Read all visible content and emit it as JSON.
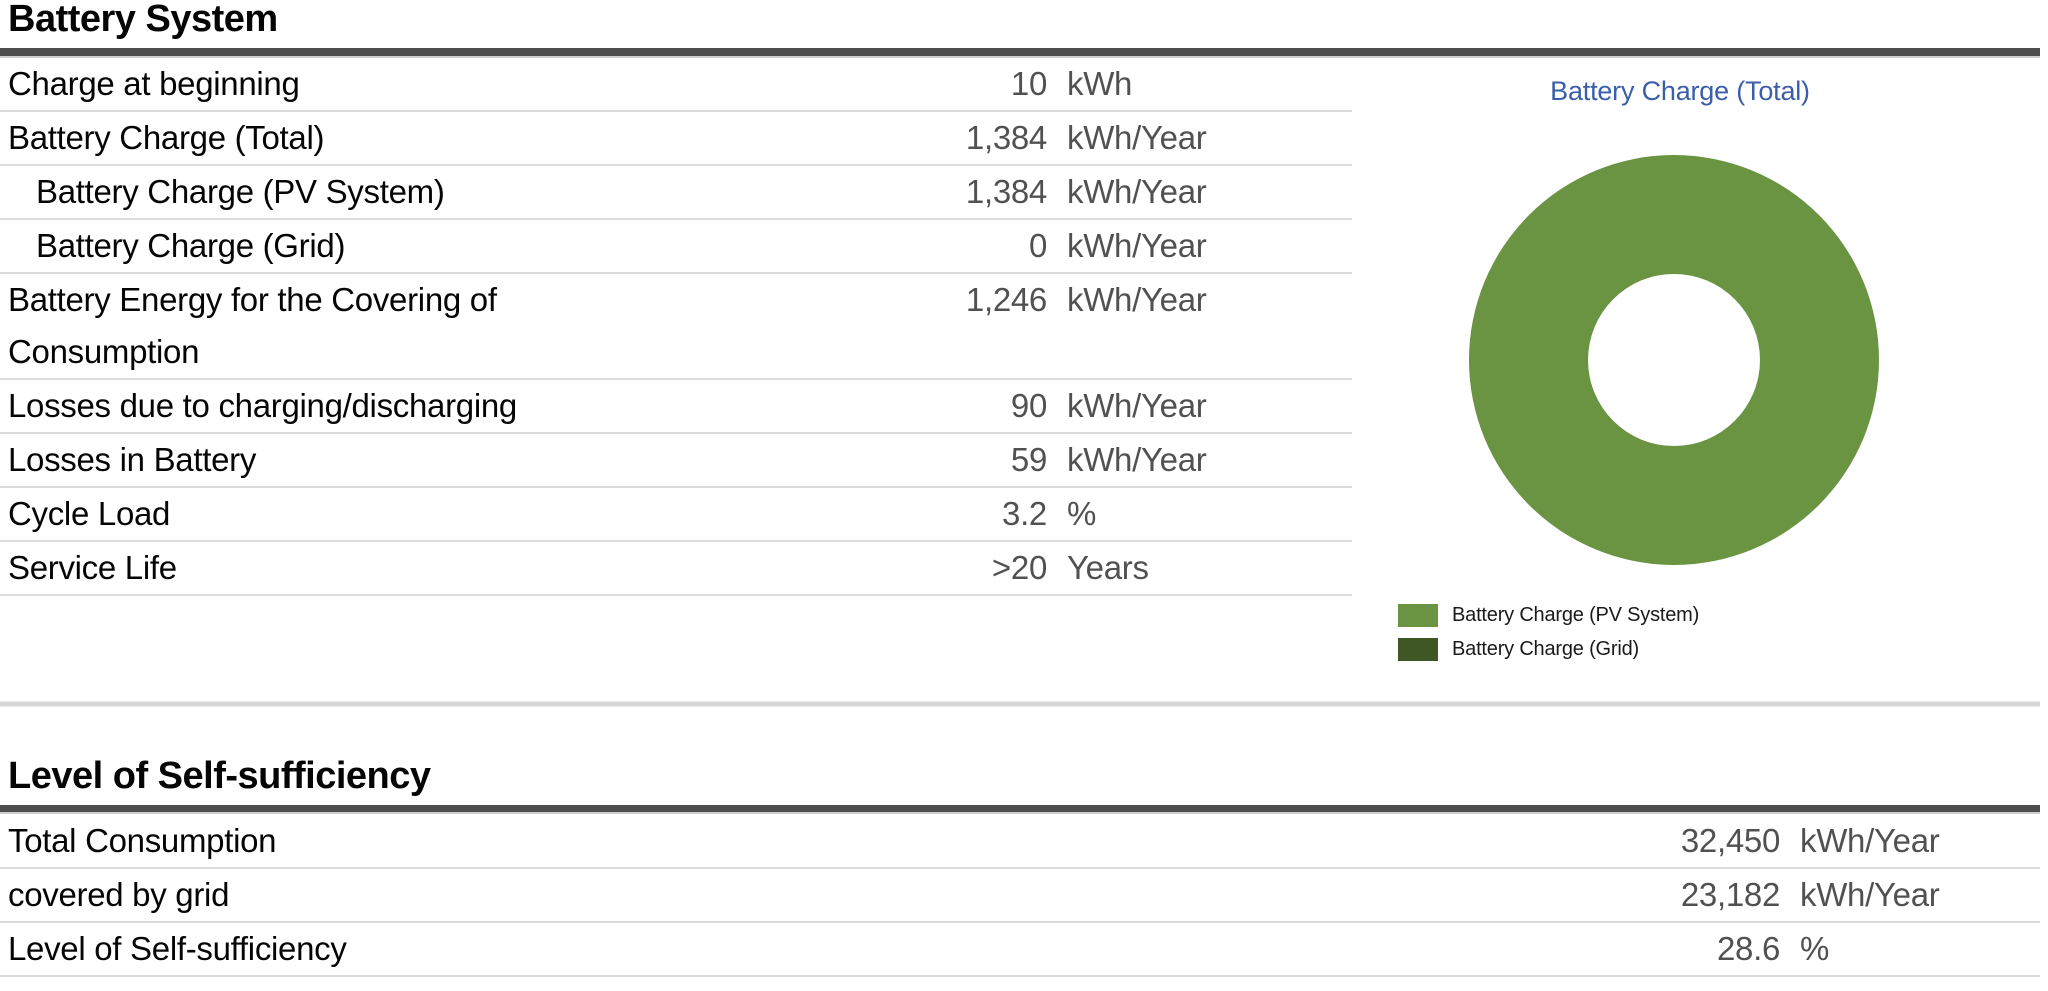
{
  "sections": [
    {
      "title": "Battery System",
      "rows": [
        {
          "label": "Charge at beginning",
          "value": "10",
          "unit": "kWh"
        },
        {
          "label": "Battery Charge (Total)",
          "value": "1,384",
          "unit": "kWh/Year"
        },
        {
          "label": "Battery Charge (PV System)",
          "value": "1,384",
          "unit": "kWh/Year",
          "indent": true
        },
        {
          "label": "Battery Charge (Grid)",
          "value": "0",
          "unit": "kWh/Year",
          "indent": true
        },
        {
          "label": "Battery Energy for the Covering of Consumption",
          "value": "1,246",
          "unit": "kWh/Year"
        },
        {
          "label": "Losses due to charging/discharging",
          "value": "90",
          "unit": "kWh/Year"
        },
        {
          "label": "Losses in Battery",
          "value": "59",
          "unit": "kWh/Year"
        },
        {
          "label": "Cycle Load",
          "value": "3.2",
          "unit": "%"
        },
        {
          "label": "Service Life",
          "value": ">20",
          "unit": "Years"
        }
      ]
    },
    {
      "title": "Level of Self-sufficiency",
      "rows": [
        {
          "label": "Total Consumption",
          "value": "32,450",
          "unit": "kWh/Year"
        },
        {
          "label": "covered by grid",
          "value": "23,182",
          "unit": "kWh/Year"
        },
        {
          "label": "Level of Self-sufficiency",
          "value": "28.6",
          "unit": "%"
        }
      ]
    }
  ],
  "chart_data": {
    "type": "pie",
    "subtype": "donut",
    "title": "Battery Charge (Total)",
    "title_color": "#3A5EA8",
    "unit": "kWh/Year",
    "legend_position": "bottom-left",
    "series": [
      {
        "name": "Battery Charge (PV System)",
        "value": 1384,
        "color": "#6A9342"
      },
      {
        "name": "Battery Charge (Grid)",
        "value": 0,
        "color": "#3F5724"
      }
    ]
  },
  "colors": {
    "rule": "#4D4D4D",
    "row_line": "#DCDCDC",
    "value_text": "#515151",
    "separator": "#D5D5D5"
  }
}
